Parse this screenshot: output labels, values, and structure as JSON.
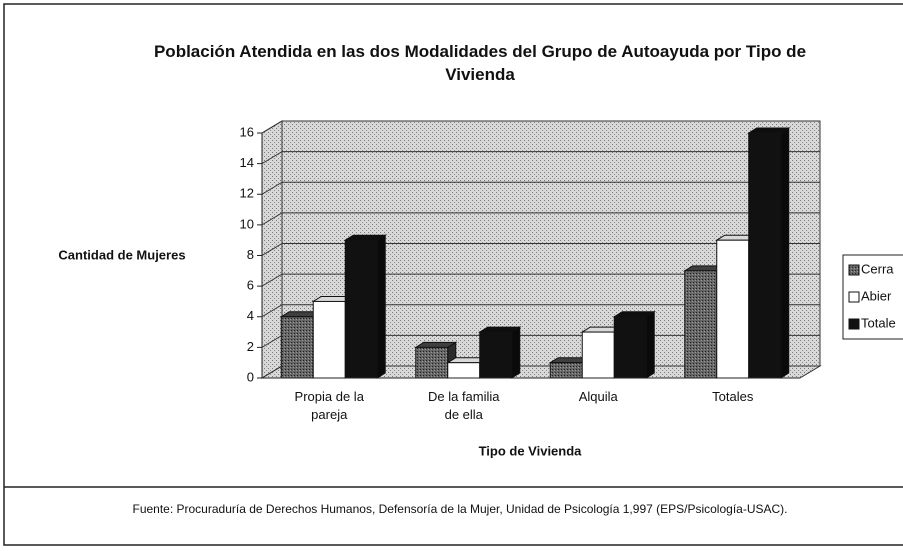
{
  "chart_data": {
    "type": "bar3d",
    "title": "Población Atendida en las dos Modalidades del Grupo de Autoayuda por Tipo de Vivienda",
    "ylabel": "Cantidad de Mujeres",
    "xlabel": "Tipo de Vivienda",
    "source": "Fuente:  Procuraduría de Derechos Humanos, Defensoría de la Mujer, Unidad de Psicología 1,997 (EPS/Psicología-USAC).",
    "categories": [
      "Propia de la pareja",
      "De la familia de ella",
      "Alquila",
      "Totales"
    ],
    "series": [
      {
        "name": "Cerra",
        "color": "#4a4a4a",
        "values": [
          4,
          2,
          1,
          7
        ]
      },
      {
        "name": "Abier",
        "color": "#ffffff",
        "values": [
          5,
          1,
          3,
          9
        ]
      },
      {
        "name": "Totale",
        "color": "#111111",
        "values": [
          9,
          3,
          4,
          16
        ]
      }
    ],
    "ylim": [
      0,
      16
    ],
    "yticks": [
      0,
      2,
      4,
      6,
      8,
      10,
      12,
      14,
      16
    ],
    "grid": true
  }
}
